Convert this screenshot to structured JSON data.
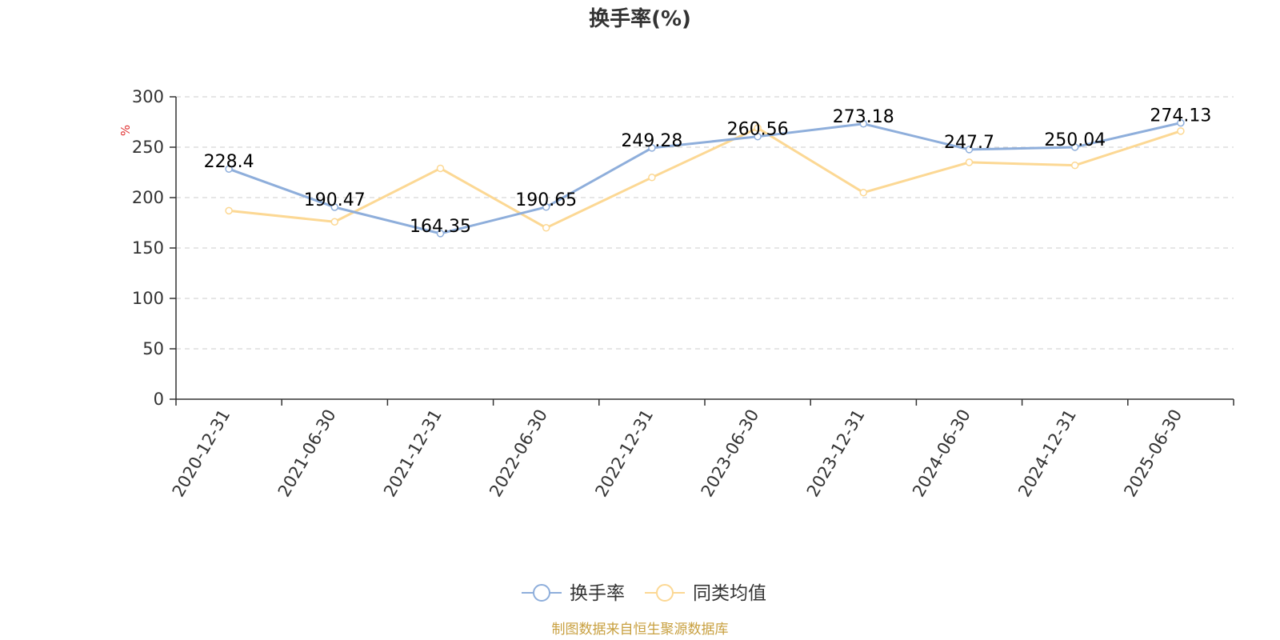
{
  "chart_data": {
    "type": "line",
    "title": "换手率(%)",
    "ylabel": "%",
    "xlabel": "",
    "ylim": [
      0,
      300
    ],
    "yticks": [
      0,
      50,
      100,
      150,
      200,
      250,
      300
    ],
    "categories": [
      "2020-12-31",
      "2021-06-30",
      "2021-12-31",
      "2022-06-30",
      "2022-12-31",
      "2023-06-30",
      "2023-12-31",
      "2024-06-30",
      "2024-12-31",
      "2025-06-30"
    ],
    "series": [
      {
        "name": "换手率",
        "color": "#8eaedb",
        "values": [
          228.4,
          190.47,
          164.35,
          190.65,
          249.28,
          260.56,
          273.18,
          247.7,
          250.04,
          274.13
        ],
        "labels": [
          "228.4",
          "190.47",
          "164.35",
          "190.65",
          "249.28",
          "260.56",
          "273.18",
          "247.7",
          "250.04",
          "274.13"
        ]
      },
      {
        "name": "同类均值",
        "color": "#fcd894",
        "values": [
          187,
          176,
          229,
          170,
          220,
          269,
          205,
          235,
          232,
          266
        ]
      }
    ],
    "grid": true,
    "legend_position": "bottom"
  },
  "source_note": "制图数据来自恒生聚源数据库",
  "colors": {
    "axis": "#333333",
    "ylabel": "#e03030",
    "source": "#c8a040"
  }
}
